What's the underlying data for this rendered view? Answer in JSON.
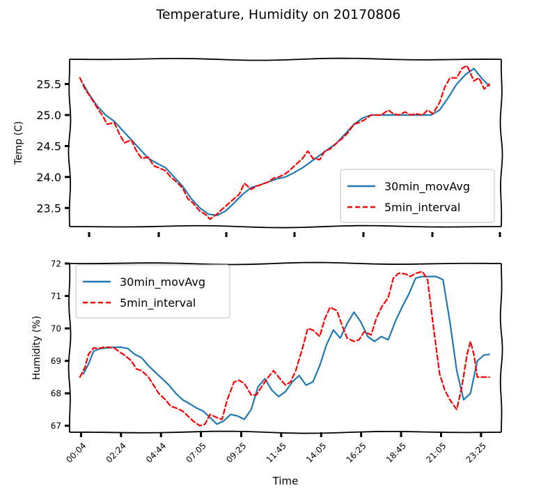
{
  "figure": {
    "title": "Temperature, Humidity on 20170806"
  },
  "chart_data": [
    {
      "type": "line",
      "ylabel": "Temp (C)",
      "xlabel": "",
      "ylim": [
        23.2,
        25.9
      ],
      "yticks": [
        23.5,
        24.0,
        24.5,
        25.0,
        25.5
      ],
      "ytick_labels": [
        "23.5",
        "24.0",
        "24.5",
        "25.0",
        "25.5"
      ],
      "legend": {
        "location": "lower-right",
        "entries": [
          "30min_movAvg",
          "5min_interval"
        ]
      },
      "grid": false,
      "series": [
        {
          "name": "30min_movAvg",
          "color": "#1f77b4",
          "style": "solid",
          "x": [
            0.2,
            0.5,
            1.0,
            1.5,
            2.0,
            2.5,
            3.0,
            3.5,
            4.0,
            4.5,
            5.0,
            5.5,
            6.0,
            6.5,
            7.0,
            7.5,
            8.0,
            8.5,
            9.0,
            9.5,
            10.0,
            10.5,
            11.0,
            11.5,
            12.0,
            12.5,
            13.0,
            13.5,
            14.0,
            14.5,
            15.0,
            15.5,
            16.0,
            16.5,
            17.0,
            17.5,
            18.0,
            18.5,
            19.0,
            19.5,
            20.0,
            20.5,
            21.0,
            21.5,
            22.0,
            22.5,
            23.0,
            23.5,
            23.9
          ],
          "y": [
            25.5,
            25.35,
            25.15,
            25.0,
            24.9,
            24.75,
            24.6,
            24.45,
            24.3,
            24.22,
            24.15,
            24.0,
            23.85,
            23.65,
            23.5,
            23.4,
            23.38,
            23.45,
            23.58,
            23.72,
            23.83,
            23.87,
            23.92,
            23.97,
            24.0,
            24.07,
            24.15,
            24.25,
            24.35,
            24.45,
            24.55,
            24.7,
            24.85,
            24.95,
            25.0,
            25.0,
            25.0,
            25.0,
            25.0,
            25.0,
            25.0,
            25.0,
            25.08,
            25.28,
            25.5,
            25.65,
            25.75,
            25.58,
            25.47
          ]
        },
        {
          "name": "5min_interval",
          "color": "#ff0000",
          "style": "dashed",
          "x": [
            0.0,
            0.3,
            0.6,
            1.0,
            1.3,
            1.6,
            2.0,
            2.3,
            2.6,
            3.0,
            3.3,
            3.6,
            4.0,
            4.3,
            4.6,
            5.0,
            5.3,
            5.6,
            6.0,
            6.3,
            6.6,
            7.0,
            7.3,
            7.6,
            8.0,
            8.3,
            8.6,
            9.0,
            9.3,
            9.6,
            10.0,
            10.3,
            10.6,
            11.0,
            11.3,
            11.6,
            12.0,
            12.3,
            12.6,
            13.0,
            13.3,
            13.6,
            14.0,
            14.3,
            14.6,
            15.0,
            15.3,
            15.6,
            16.0,
            16.3,
            16.6,
            17.0,
            17.3,
            17.6,
            18.0,
            18.3,
            18.6,
            19.0,
            19.3,
            19.6,
            20.0,
            20.3,
            20.6,
            21.0,
            21.3,
            21.6,
            22.0,
            22.3,
            22.6,
            23.0,
            23.3,
            23.6,
            23.9
          ],
          "y": [
            25.6,
            25.42,
            25.3,
            25.12,
            25.0,
            24.85,
            24.88,
            24.7,
            24.55,
            24.6,
            24.42,
            24.3,
            24.32,
            24.18,
            24.15,
            24.1,
            24.0,
            23.93,
            23.82,
            23.65,
            23.58,
            23.45,
            23.4,
            23.32,
            23.4,
            23.48,
            23.55,
            23.65,
            23.72,
            23.9,
            23.8,
            23.85,
            23.88,
            23.92,
            23.98,
            24.0,
            24.05,
            24.12,
            24.2,
            24.3,
            24.42,
            24.3,
            24.28,
            24.42,
            24.45,
            24.55,
            24.62,
            24.7,
            24.85,
            24.88,
            24.92,
            25.0,
            25.0,
            25.0,
            25.08,
            25.02,
            25.0,
            25.05,
            25.0,
            25.02,
            25.0,
            25.08,
            25.02,
            25.2,
            25.45,
            25.6,
            25.6,
            25.75,
            25.8,
            25.55,
            25.6,
            25.42,
            25.5
          ]
        }
      ]
    },
    {
      "type": "line",
      "ylabel": "Humidity (%)",
      "xlabel": "Time",
      "ylim": [
        66.8,
        72.0
      ],
      "yticks": [
        67,
        68,
        69,
        70,
        71,
        72
      ],
      "ytick_labels": [
        "67",
        "68",
        "69",
        "70",
        "71",
        "72"
      ],
      "xticks": [
        0.067,
        2.4,
        4.733,
        7.067,
        9.417,
        11.75,
        14.083,
        16.417,
        18.75,
        21.083,
        23.417
      ],
      "xtick_labels": [
        "00:04",
        "02:24",
        "04:44",
        "07:05",
        "09:25",
        "11:45",
        "14:05",
        "16:25",
        "18:45",
        "21:05",
        "23:25"
      ],
      "legend": {
        "location": "top-left",
        "entries": [
          "30min_movAvg",
          "5min_interval"
        ]
      },
      "grid": false,
      "series": [
        {
          "name": "30min_movAvg",
          "color": "#1f77b4",
          "style": "solid",
          "x": [
            0.2,
            0.5,
            0.8,
            1.2,
            1.6,
            2.0,
            2.4,
            2.8,
            3.2,
            3.6,
            4.0,
            4.4,
            4.8,
            5.2,
            5.6,
            6.0,
            6.4,
            6.8,
            7.2,
            7.6,
            8.0,
            8.4,
            8.8,
            9.2,
            9.6,
            10.0,
            10.4,
            10.8,
            11.2,
            11.6,
            12.0,
            12.4,
            12.8,
            13.2,
            13.6,
            14.0,
            14.4,
            14.8,
            15.2,
            15.6,
            16.0,
            16.4,
            16.8,
            17.2,
            17.6,
            18.0,
            18.4,
            18.8,
            19.2,
            19.6,
            20.0,
            20.4,
            20.8,
            21.2,
            21.6,
            22.0,
            22.4,
            22.8,
            23.2,
            23.6,
            23.9
          ],
          "y": [
            68.6,
            68.9,
            69.3,
            69.38,
            69.4,
            69.42,
            69.42,
            69.38,
            69.2,
            69.1,
            68.85,
            68.65,
            68.45,
            68.25,
            68.0,
            67.8,
            67.68,
            67.55,
            67.45,
            67.25,
            67.05,
            67.15,
            67.35,
            67.3,
            67.2,
            67.5,
            68.2,
            68.45,
            68.1,
            67.9,
            68.05,
            68.35,
            68.55,
            68.25,
            68.35,
            68.85,
            69.5,
            69.95,
            69.7,
            70.15,
            70.5,
            70.2,
            69.75,
            69.6,
            69.75,
            69.65,
            70.2,
            70.65,
            71.05,
            71.55,
            71.6,
            71.6,
            71.6,
            71.5,
            70.2,
            68.7,
            67.8,
            68.0,
            69.0,
            69.18,
            69.2
          ]
        },
        {
          "name": "5min_interval",
          "color": "#ff0000",
          "style": "dashed",
          "x": [
            0.0,
            0.3,
            0.5,
            0.8,
            1.1,
            1.4,
            1.7,
            2.0,
            2.3,
            2.6,
            3.0,
            3.3,
            3.6,
            4.0,
            4.3,
            4.6,
            5.0,
            5.3,
            5.6,
            6.0,
            6.3,
            6.6,
            7.0,
            7.3,
            7.6,
            8.0,
            8.3,
            8.6,
            9.0,
            9.3,
            9.6,
            10.0,
            10.3,
            10.6,
            11.0,
            11.3,
            11.6,
            12.0,
            12.3,
            12.6,
            13.0,
            13.3,
            13.6,
            14.0,
            14.3,
            14.6,
            15.0,
            15.3,
            15.6,
            16.0,
            16.3,
            16.6,
            17.0,
            17.3,
            17.6,
            18.0,
            18.3,
            18.6,
            19.0,
            19.3,
            19.6,
            20.0,
            20.3,
            20.6,
            21.0,
            21.3,
            21.6,
            22.0,
            22.3,
            22.6,
            22.8,
            23.0,
            23.2,
            23.4,
            23.6,
            23.8,
            23.9
          ],
          "y": [
            68.5,
            68.8,
            69.2,
            69.4,
            69.38,
            69.42,
            69.42,
            69.4,
            69.28,
            69.18,
            69.0,
            68.75,
            68.7,
            68.5,
            68.25,
            68.0,
            67.8,
            67.6,
            67.55,
            67.45,
            67.3,
            67.15,
            67.0,
            67.05,
            67.35,
            67.25,
            67.2,
            67.8,
            68.35,
            68.4,
            68.3,
            67.95,
            67.95,
            68.2,
            68.5,
            68.7,
            68.5,
            68.25,
            68.35,
            68.7,
            69.4,
            70.0,
            69.95,
            69.75,
            70.3,
            70.65,
            70.55,
            70.1,
            69.7,
            69.6,
            69.65,
            69.9,
            69.8,
            70.3,
            70.65,
            70.95,
            71.55,
            71.7,
            71.68,
            71.6,
            71.7,
            71.75,
            71.5,
            70.2,
            68.6,
            68.1,
            67.8,
            67.5,
            68.2,
            69.2,
            69.6,
            69.2,
            68.5,
            68.5,
            68.5,
            68.5,
            68.5
          ]
        }
      ]
    }
  ]
}
